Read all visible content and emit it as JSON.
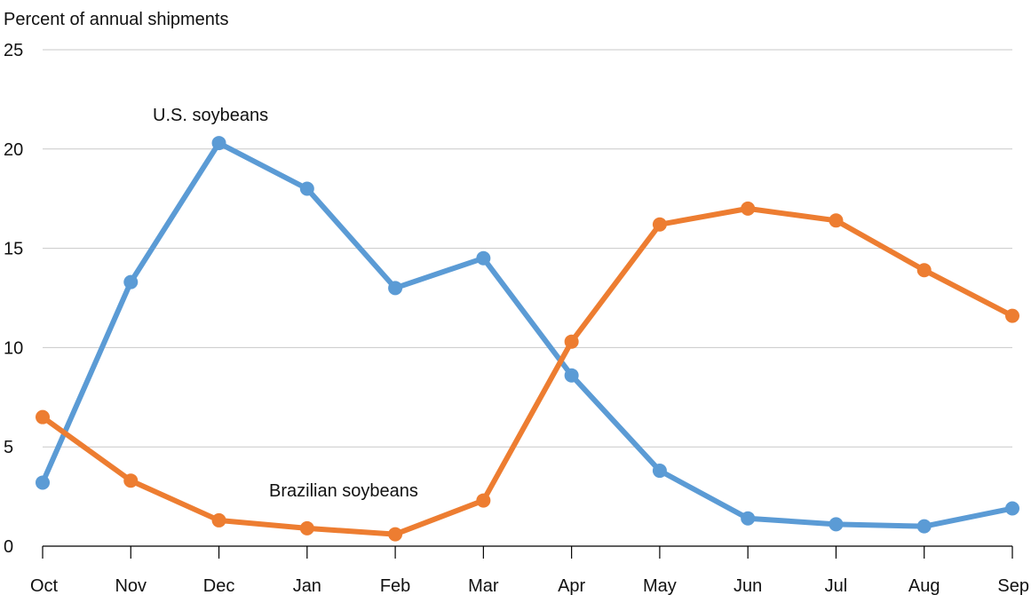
{
  "chart_data": {
    "type": "line",
    "title": "",
    "xlabel": "",
    "ylabel": "Percent of annual shipments",
    "ylim": [
      0,
      25
    ],
    "yticks": [
      0,
      5,
      10,
      15,
      20,
      25
    ],
    "grid": true,
    "categories": [
      "Oct",
      "Nov",
      "Dec",
      "Jan",
      "Feb",
      "Mar",
      "Apr",
      "May",
      "Jun",
      "Jul",
      "Aug",
      "Sep"
    ],
    "series": [
      {
        "name": "U.S. soybeans",
        "color": "#5b9bd5",
        "values": [
          3.2,
          13.3,
          20.3,
          18.0,
          13.0,
          14.5,
          8.6,
          3.8,
          1.4,
          1.1,
          1.0,
          1.9
        ]
      },
      {
        "name": "Brazilian soybeans",
        "color": "#ed7d31",
        "values": [
          6.5,
          3.3,
          1.3,
          0.9,
          0.6,
          2.3,
          10.3,
          16.2,
          17.0,
          16.4,
          13.9,
          11.6
        ]
      }
    ]
  }
}
